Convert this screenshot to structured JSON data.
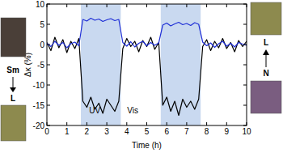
{
  "chart_data": {
    "type": "line",
    "x_label": "Time (h)",
    "y_label": "Δκ (%)",
    "x": [
      0,
      0.2,
      0.4,
      0.6,
      0.8,
      1,
      1.2,
      1.4,
      1.6,
      1.8,
      2,
      2.2,
      2.4,
      2.6,
      2.8,
      3,
      3.2,
      3.4,
      3.6,
      3.8,
      4,
      4.2,
      4.4,
      4.6,
      4.8,
      5,
      5.2,
      5.4,
      5.6,
      5.8,
      6,
      6.2,
      6.4,
      6.6,
      6.8,
      7,
      7.2,
      7.4,
      7.6,
      7.8,
      8,
      8.2,
      8.4,
      8.6,
      8.8,
      9,
      9.2,
      9.4,
      9.6,
      9.8,
      10
    ],
    "series": [
      {
        "color": "#000000",
        "values": [
          0.5,
          -1.5,
          1.8,
          -0.8,
          1.2,
          -2,
          0.8,
          -1,
          1.5,
          -14,
          -15.5,
          -13,
          -16,
          -14.5,
          -17,
          -13.5,
          -15,
          -16.5,
          -14,
          -1,
          1.5,
          -0.5,
          0.8,
          -1.8,
          1,
          -0.5,
          1.8,
          -1.2,
          0.5,
          -15,
          -13,
          -16.5,
          -14,
          -17.5,
          -13.5,
          -15.5,
          -14,
          -16,
          -13.5,
          -0.5,
          1.2,
          -1.5,
          0.8,
          -0.8,
          1.5,
          -1,
          0.5,
          -1.8,
          1,
          -0.5,
          0.8
        ]
      },
      {
        "color": "#1f2fd6",
        "values": [
          0.3,
          -0.5,
          0.8,
          -0.2,
          0.5,
          -0.8,
          0.2,
          0.6,
          -0.3,
          6.2,
          5.8,
          6.5,
          6,
          6.3,
          5.7,
          6.1,
          6.4,
          5.9,
          6.2,
          0.5,
          -0.4,
          0.7,
          -0.6,
          0.3,
          0.8,
          -0.3,
          0.5,
          -0.2,
          0.4,
          4.8,
          5.3,
          4.6,
          5.1,
          5.5,
          4.9,
          5.2,
          4.7,
          5.4,
          5,
          0.6,
          -0.3,
          0.4,
          -0.7,
          0.2,
          0.8,
          -0.4,
          0.3,
          -0.6,
          0.5,
          0.1,
          -0.2
        ]
      }
    ],
    "xlim": [
      0,
      10
    ],
    "xticks": [
      0,
      1,
      2,
      3,
      4,
      5,
      6,
      7,
      8,
      9,
      10
    ],
    "ylim": [
      -20,
      10
    ],
    "yticks": [
      -20,
      -15,
      -10,
      -5,
      0,
      5,
      10
    ],
    "grid": false,
    "regions": [
      {
        "start": 1.7,
        "end": 3.7,
        "color": "#c9d9f0"
      },
      {
        "start": 5.7,
        "end": 7.7,
        "color": "#c9d9f0"
      }
    ],
    "annotations": [
      {
        "text": "UV",
        "x": 2.4,
        "y": -17
      },
      {
        "text": "Vis",
        "x": 4.3,
        "y": -17
      }
    ],
    "insets": [
      {
        "label": "Sm"
      },
      {
        "label": "L"
      },
      {
        "label": "L"
      },
      {
        "label": "N"
      }
    ]
  }
}
